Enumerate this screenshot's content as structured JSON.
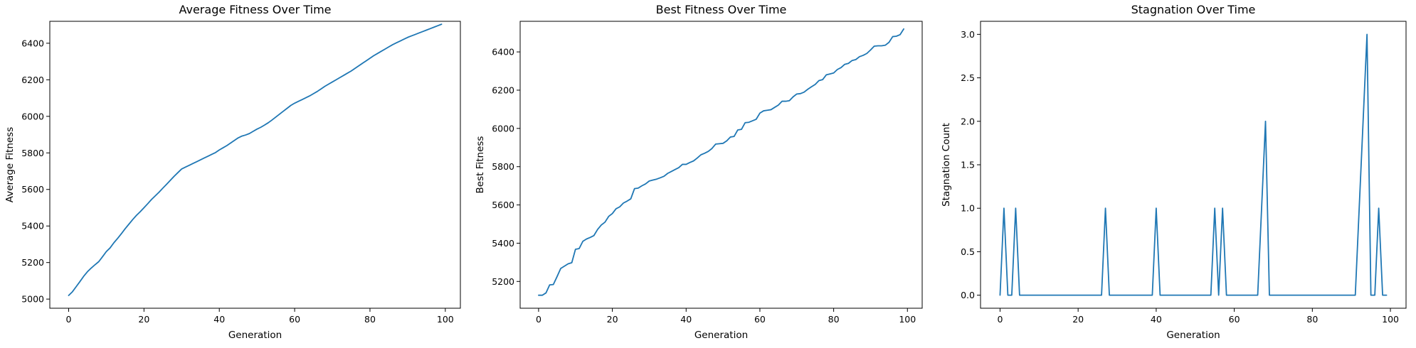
{
  "chart_data": [
    {
      "type": "line",
      "title": "Average Fitness Over Time",
      "xlabel": "Generation",
      "ylabel": "Average Fitness",
      "xlim": [
        -5,
        104
      ],
      "ylim": [
        4950,
        6520
      ],
      "x_ticks": [
        0,
        20,
        40,
        60,
        80,
        100
      ],
      "y_ticks": [
        5000,
        5200,
        5400,
        5600,
        5800,
        6000,
        6200,
        6400
      ],
      "grid": false,
      "color": "#1f77b4",
      "series": [
        {
          "x": [
            0,
            1,
            2,
            3,
            4,
            5,
            6,
            7,
            8,
            9,
            10,
            11,
            12,
            13,
            14,
            15,
            16,
            17,
            18,
            19,
            20,
            21,
            22,
            23,
            24,
            25,
            26,
            27,
            28,
            29,
            30,
            31,
            32,
            33,
            34,
            35,
            36,
            37,
            38,
            39,
            40,
            41,
            42,
            43,
            44,
            45,
            46,
            47,
            48,
            49,
            50,
            51,
            52,
            53,
            54,
            55,
            56,
            57,
            58,
            59,
            60,
            61,
            62,
            63,
            64,
            65,
            66,
            67,
            68,
            69,
            70,
            71,
            72,
            73,
            74,
            75,
            76,
            77,
            78,
            79,
            80,
            81,
            82,
            83,
            84,
            85,
            86,
            87,
            88,
            89,
            90,
            91,
            92,
            93,
            94,
            95,
            96,
            97,
            98,
            99
          ],
          "values": [
            5020,
            5040,
            5068,
            5096,
            5125,
            5150,
            5170,
            5188,
            5205,
            5232,
            5260,
            5280,
            5308,
            5332,
            5358,
            5385,
            5410,
            5435,
            5458,
            5478,
            5500,
            5522,
            5545,
            5565,
            5585,
            5607,
            5628,
            5650,
            5672,
            5692,
            5712,
            5722,
            5732,
            5742,
            5752,
            5762,
            5772,
            5782,
            5792,
            5802,
            5816,
            5828,
            5840,
            5854,
            5868,
            5882,
            5892,
            5898,
            5906,
            5918,
            5930,
            5940,
            5952,
            5965,
            5980,
            5996,
            6012,
            6028,
            6044,
            6060,
            6072,
            6082,
            6092,
            6102,
            6112,
            6124,
            6136,
            6150,
            6164,
            6176,
            6188,
            6200,
            6212,
            6224,
            6236,
            6248,
            6262,
            6276,
            6290,
            6304,
            6318,
            6332,
            6344,
            6356,
            6368,
            6380,
            6392,
            6402,
            6412,
            6422,
            6432,
            6440,
            6448,
            6456,
            6464,
            6472,
            6480,
            6488,
            6496,
            6504
          ]
        }
      ]
    },
    {
      "type": "line",
      "title": "Best Fitness Over Time",
      "xlabel": "Generation",
      "ylabel": "Best Fitness",
      "xlim": [
        -5,
        104
      ],
      "ylim": [
        5060,
        6560
      ],
      "x_ticks": [
        0,
        20,
        40,
        60,
        80,
        100
      ],
      "y_ticks": [
        5200,
        5400,
        5600,
        5800,
        6000,
        6200,
        6400
      ],
      "grid": false,
      "color": "#1f77b4",
      "series": [
        {
          "x": [
            0,
            1,
            2,
            3,
            4,
            5,
            6,
            7,
            8,
            9,
            10,
            11,
            12,
            13,
            14,
            15,
            16,
            17,
            18,
            19,
            20,
            21,
            22,
            23,
            24,
            25,
            26,
            27,
            28,
            29,
            30,
            31,
            32,
            33,
            34,
            35,
            36,
            37,
            38,
            39,
            40,
            41,
            42,
            43,
            44,
            45,
            46,
            47,
            48,
            49,
            50,
            51,
            52,
            53,
            54,
            55,
            56,
            57,
            58,
            59,
            60,
            61,
            62,
            63,
            64,
            65,
            66,
            67,
            68,
            69,
            70,
            71,
            72,
            73,
            74,
            75,
            76,
            77,
            78,
            79,
            80,
            81,
            82,
            83,
            84,
            85,
            86,
            87,
            88,
            89,
            90,
            91,
            92,
            93,
            94,
            95,
            96,
            97,
            98,
            99
          ],
          "values": [
            5128,
            5128,
            5140,
            5182,
            5184,
            5225,
            5268,
            5280,
            5292,
            5298,
            5368,
            5372,
            5410,
            5422,
            5430,
            5440,
            5472,
            5495,
            5510,
            5540,
            5555,
            5580,
            5590,
            5610,
            5620,
            5632,
            5685,
            5688,
            5700,
            5710,
            5725,
            5730,
            5735,
            5742,
            5750,
            5765,
            5775,
            5785,
            5795,
            5812,
            5812,
            5822,
            5830,
            5845,
            5862,
            5870,
            5880,
            5895,
            5918,
            5920,
            5922,
            5935,
            5955,
            5958,
            5992,
            5995,
            6030,
            6032,
            6040,
            6048,
            6080,
            6092,
            6095,
            6098,
            6110,
            6122,
            6142,
            6142,
            6145,
            6165,
            6180,
            6182,
            6190,
            6205,
            6218,
            6230,
            6250,
            6255,
            6280,
            6285,
            6290,
            6308,
            6318,
            6335,
            6340,
            6355,
            6360,
            6375,
            6382,
            6392,
            6410,
            6430,
            6432,
            6432,
            6435,
            6450,
            6480,
            6482,
            6490,
            6520
          ]
        }
      ]
    },
    {
      "type": "line",
      "title": "Stagnation Over Time",
      "xlabel": "Generation",
      "ylabel": "Stagnation Count",
      "xlim": [
        -5,
        104
      ],
      "ylim": [
        -0.15,
        3.15
      ],
      "x_ticks": [
        0,
        20,
        40,
        60,
        80,
        100
      ],
      "y_ticks": [
        0.0,
        0.5,
        1.0,
        1.5,
        2.0,
        2.5,
        3.0
      ],
      "grid": false,
      "color": "#1f77b4",
      "series": [
        {
          "x": [
            0,
            1,
            2,
            3,
            4,
            5,
            6,
            7,
            8,
            9,
            10,
            11,
            12,
            13,
            14,
            15,
            16,
            17,
            18,
            19,
            20,
            21,
            22,
            23,
            24,
            25,
            26,
            27,
            28,
            29,
            30,
            31,
            32,
            33,
            34,
            35,
            36,
            37,
            38,
            39,
            40,
            41,
            42,
            43,
            44,
            45,
            46,
            47,
            48,
            49,
            50,
            51,
            52,
            53,
            54,
            55,
            56,
            57,
            58,
            59,
            60,
            61,
            62,
            63,
            64,
            65,
            66,
            67,
            68,
            69,
            70,
            71,
            72,
            73,
            74,
            75,
            76,
            77,
            78,
            79,
            80,
            81,
            82,
            83,
            84,
            85,
            86,
            87,
            88,
            89,
            90,
            91,
            92,
            93,
            94,
            95,
            96,
            97,
            98,
            99
          ],
          "values": [
            0,
            1,
            0,
            0,
            1,
            0,
            0,
            0,
            0,
            0,
            0,
            0,
            0,
            0,
            0,
            0,
            0,
            0,
            0,
            0,
            0,
            0,
            0,
            0,
            0,
            0,
            0,
            1,
            0,
            0,
            0,
            0,
            0,
            0,
            0,
            0,
            0,
            0,
            0,
            0,
            1,
            0,
            0,
            0,
            0,
            0,
            0,
            0,
            0,
            0,
            0,
            0,
            0,
            0,
            0,
            1,
            0,
            1,
            0,
            0,
            0,
            0,
            0,
            0,
            0,
            0,
            0,
            1,
            2,
            0,
            0,
            0,
            0,
            0,
            0,
            0,
            0,
            0,
            0,
            0,
            0,
            0,
            0,
            0,
            0,
            0,
            0,
            0,
            0,
            0,
            0,
            0,
            1,
            2,
            3,
            0,
            0,
            1,
            0,
            0
          ]
        }
      ]
    }
  ]
}
